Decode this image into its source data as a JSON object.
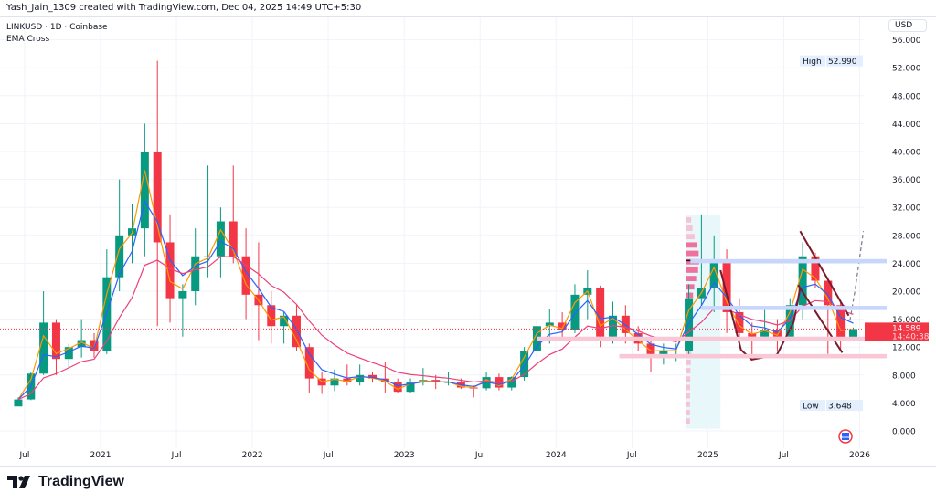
{
  "header": {
    "credit": "Yash_Jain_1309 created with TradingView.com, Dec 04, 2025 14:49 UTC+5:30",
    "symbol_line": "LINKUSD · 1D · Coinbase",
    "indicator": "EMA Cross"
  },
  "currency_button": "USD",
  "brand": "TradingView",
  "colors": {
    "up": "#089981",
    "down": "#f23645",
    "ema_fast": "#ff9800",
    "ema_mid": "#2962ff",
    "ema_slow": "#ec407a",
    "drawing": "#7b1a2c",
    "blue_zone": "#c9d6fb",
    "pink_zone": "#f8c8d6",
    "profile_bg": "#e8f7fa",
    "grid": "#f0f3fa"
  },
  "chart_data": {
    "type": "candlestick",
    "symbol": "LINKUSD",
    "interval": "1D",
    "exchange": "Coinbase",
    "ylim": [
      0,
      56
    ],
    "yticks": [
      "0.000",
      "4.000",
      "8.000",
      "12.000",
      "16.000",
      "20.000",
      "24.000",
      "28.000",
      "32.000",
      "36.000",
      "40.000",
      "44.000",
      "48.000",
      "52.000",
      "56.000"
    ],
    "xticks": [
      {
        "label": "Jul",
        "date": "2020-07"
      },
      {
        "label": "2021",
        "date": "2021-01"
      },
      {
        "label": "Jul",
        "date": "2021-07"
      },
      {
        "label": "2022",
        "date": "2022-01"
      },
      {
        "label": "Jul",
        "date": "2022-07"
      },
      {
        "label": "2023",
        "date": "2023-01"
      },
      {
        "label": "Jul",
        "date": "2023-07"
      },
      {
        "label": "2024",
        "date": "2024-01"
      },
      {
        "label": "Jul",
        "date": "2024-07"
      },
      {
        "label": "2025",
        "date": "2025-01"
      },
      {
        "label": "Jul",
        "date": "2025-07"
      },
      {
        "label": "2026",
        "date": "2026-01"
      }
    ],
    "high": {
      "label": "High",
      "value": "52.990"
    },
    "low": {
      "label": "Low",
      "value": "3.648"
    },
    "last_price": {
      "value": "14.589",
      "countdown": "14:40:38"
    },
    "ohlc_approx_monthly": [
      [
        "2020-06",
        3.5,
        4.8,
        3.65,
        4.5
      ],
      [
        "2020-07",
        4.5,
        8.5,
        4.4,
        8.2
      ],
      [
        "2020-08",
        8.2,
        20,
        8,
        15.5
      ],
      [
        "2020-09",
        15.5,
        16,
        8,
        10.3
      ],
      [
        "2020-10",
        10.3,
        12.5,
        9,
        12
      ],
      [
        "2020-11",
        12,
        16,
        10.5,
        13
      ],
      [
        "2020-12",
        13,
        14,
        10.5,
        11.5
      ],
      [
        "2021-01",
        11.5,
        26,
        11,
        22
      ],
      [
        "2021-02",
        22,
        36,
        20,
        28
      ],
      [
        "2021-03",
        28,
        32.5,
        24,
        29
      ],
      [
        "2021-04",
        29,
        44,
        25,
        40
      ],
      [
        "2021-05",
        40,
        52.99,
        15,
        27
      ],
      [
        "2021-06",
        27,
        31,
        15.5,
        19
      ],
      [
        "2021-07",
        19,
        21,
        13.5,
        20
      ],
      [
        "2021-08",
        20,
        29,
        18,
        25
      ],
      [
        "2021-09",
        25,
        38,
        22,
        25
      ],
      [
        "2021-10",
        25,
        32,
        22,
        30
      ],
      [
        "2021-11",
        30,
        38,
        24,
        25
      ],
      [
        "2021-12",
        25,
        29,
        16,
        19.5
      ],
      [
        "2022-01",
        19.5,
        27,
        13,
        18
      ],
      [
        "2022-02",
        18,
        20,
        12.5,
        15
      ],
      [
        "2022-03",
        15,
        17,
        12.5,
        16.5
      ],
      [
        "2022-04",
        16.5,
        18,
        11.5,
        12
      ],
      [
        "2022-05",
        12,
        12.5,
        5.5,
        7.5
      ],
      [
        "2022-06",
        7.5,
        8.5,
        5.3,
        6.5
      ],
      [
        "2022-07",
        6.5,
        8.8,
        5.7,
        7.5
      ],
      [
        "2022-08",
        7.5,
        9.5,
        6.5,
        7
      ],
      [
        "2022-09",
        7,
        9.5,
        6.5,
        8
      ],
      [
        "2022-10",
        8,
        8.5,
        6.9,
        7.5
      ],
      [
        "2022-11",
        7.5,
        9.8,
        5.5,
        7
      ],
      [
        "2022-12",
        7,
        7.5,
        5.5,
        5.6
      ],
      [
        "2023-01",
        5.6,
        7.5,
        5.5,
        7
      ],
      [
        "2023-02",
        7,
        9,
        6.5,
        7.3
      ],
      [
        "2023-03",
        7.3,
        8,
        6,
        7
      ],
      [
        "2023-04",
        7,
        8.5,
        6.5,
        7
      ],
      [
        "2023-05",
        7,
        7.5,
        6,
        6.2
      ],
      [
        "2023-06",
        6.2,
        6.5,
        4.8,
        6.1
      ],
      [
        "2023-07",
        6.1,
        8.5,
        5.8,
        7.7
      ],
      [
        "2023-08",
        7.7,
        8.2,
        5.8,
        6.2
      ],
      [
        "2023-09",
        6.2,
        7.8,
        5.8,
        7.7
      ],
      [
        "2023-10",
        7.7,
        12,
        7.2,
        11.5
      ],
      [
        "2023-11",
        11.5,
        16,
        10.5,
        15
      ],
      [
        "2023-12",
        15,
        17.5,
        12.5,
        15.5
      ],
      [
        "2024-01",
        15.5,
        17,
        13,
        14.5
      ],
      [
        "2024-02",
        14.5,
        21,
        14,
        19.5
      ],
      [
        "2024-03",
        19.5,
        23,
        16,
        20.5
      ],
      [
        "2024-04",
        20.5,
        20.8,
        12,
        13.5
      ],
      [
        "2024-05",
        13.5,
        18.5,
        12.5,
        16.5
      ],
      [
        "2024-06",
        16.5,
        18,
        12.5,
        14
      ],
      [
        "2024-07",
        14,
        15,
        11.5,
        12.5
      ],
      [
        "2024-08",
        12.5,
        13,
        8.5,
        11
      ],
      [
        "2024-09",
        11,
        12.5,
        9.5,
        11.5
      ],
      [
        "2024-10",
        11.5,
        12.5,
        10,
        11.5
      ],
      [
        "2024-11",
        11.5,
        21,
        10.5,
        19
      ],
      [
        "2024-12",
        19,
        31,
        18,
        20.5
      ],
      [
        "2025-01",
        20.5,
        28,
        17,
        24.5
      ],
      [
        "2025-02",
        24.5,
        26,
        14,
        17
      ],
      [
        "2025-03",
        17,
        19,
        12.5,
        14
      ],
      [
        "2025-04",
        14,
        15.5,
        10.2,
        13.5
      ],
      [
        "2025-05",
        13.5,
        17.5,
        13,
        14.5
      ],
      [
        "2025-06",
        14.5,
        16,
        11.5,
        13.5
      ],
      [
        "2025-07",
        13.5,
        19,
        13,
        18
      ],
      [
        "2025-08",
        18,
        27,
        16,
        25
      ],
      [
        "2025-09",
        25,
        25.5,
        20.5,
        21.5
      ],
      [
        "2025-10",
        21.5,
        22,
        11,
        18
      ],
      [
        "2025-11",
        18,
        18.5,
        11.5,
        13
      ],
      [
        "2025-12",
        13,
        14.8,
        13,
        14.589
      ]
    ],
    "drawings": {
      "zones": [
        {
          "color": "blue",
          "from": "2024-11-20",
          "price_low": 24.0,
          "price_high": 24.6
        },
        {
          "color": "blue",
          "from": "2024-12-15",
          "price_low": 17.3,
          "price_high": 17.9
        },
        {
          "color": "pink",
          "from": "2023-11-15",
          "price_low": 12.9,
          "price_high": 13.5
        },
        {
          "color": "pink",
          "from": "2024-06-01",
          "price_low": 10.4,
          "price_high": 11.0
        }
      ],
      "volume_profile_range": {
        "from": "2024-11-10",
        "to": "2025-02-01",
        "price_low": 0.3,
        "price_high": 30.9,
        "poc": 24.4
      },
      "cup_path": [
        [
          "2025-02-01",
          23.0
        ],
        [
          "2025-03-20",
          11.6
        ],
        [
          "2025-04-15",
          10.2
        ],
        [
          "2025-06-15",
          10.9
        ],
        [
          "2025-07-25",
          15.6
        ],
        [
          "2025-08-10",
          20.5
        ]
      ],
      "channel_upper": [
        [
          "2025-08-10",
          28.6
        ],
        [
          "2025-12-05",
          16.5
        ]
      ],
      "channel_lower": [
        [
          "2025-08-05",
          20.9
        ],
        [
          "2025-11-20",
          11.2
        ]
      ],
      "projection": [
        [
          "2025-12-08",
          15.8
        ],
        [
          "2025-12-20",
          20.0
        ],
        [
          "2026-01-10",
          28.6
        ]
      ]
    }
  }
}
